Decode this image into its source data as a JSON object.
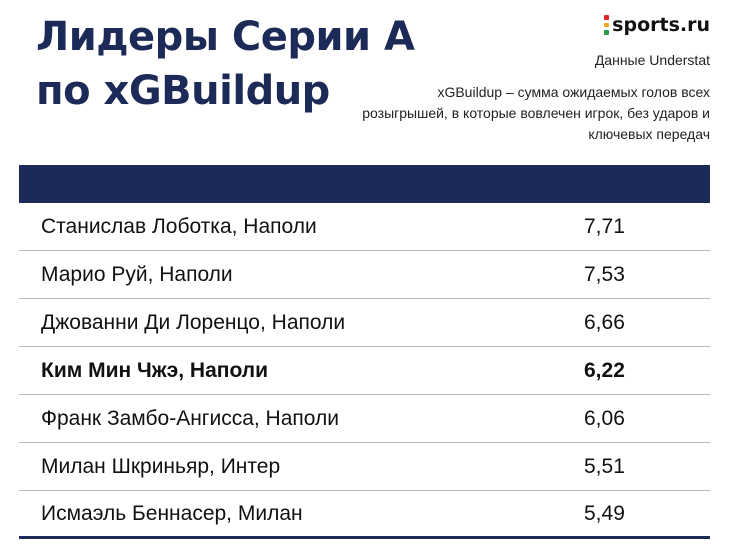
{
  "title_line1": "Лидеры Серии А",
  "title_line2": "по xGBuildup",
  "logo": {
    "text": "sports.ru",
    "colors": [
      "#e4232d",
      "#f2a81d",
      "#2a9d4a"
    ]
  },
  "source": "Данные Understat",
  "note": "xGBuildup – сумма ожидаемых голов всех розыгрышей, в которые вовлечен игрок, без ударов и ключевых передач",
  "colors": {
    "header": "#1c2a57",
    "title": "#1c2a57"
  },
  "chart_data": {
    "type": "table",
    "rows": [
      {
        "player": "Станислав Лоботка, Наполи",
        "value": "7,71",
        "highlight": false
      },
      {
        "player": "Марио Руй, Наполи",
        "value": "7,53",
        "highlight": false
      },
      {
        "player": "Джованни Ди Лоренцо, Наполи",
        "value": "6,66",
        "highlight": false
      },
      {
        "player": "Ким Мин Чжэ, Наполи",
        "value": "6,22",
        "highlight": true
      },
      {
        "player": "Франк Замбо-Ангисса, Наполи",
        "value": "6,06",
        "highlight": false
      },
      {
        "player": "Милан Шкриньяр, Интер",
        "value": "5,51",
        "highlight": false
      },
      {
        "player": "Исмаэль Беннасер, Милан",
        "value": "5,49",
        "highlight": false
      }
    ]
  }
}
